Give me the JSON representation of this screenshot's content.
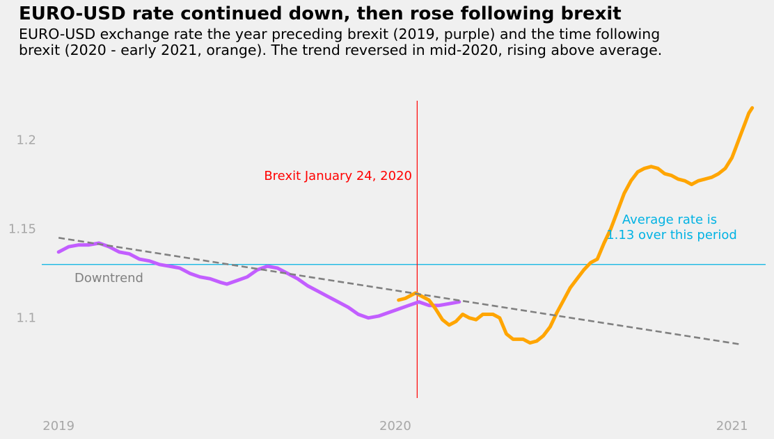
{
  "chart_data": {
    "type": "line",
    "title": "EURO-USD rate continued down, then rose following brexit",
    "subtitle": "EURO-USD exchange rate the year preceding brexit (2019, purple) and the time following brexit (2020 - early 2021, orange). The trend reversed in mid-2020, rising above average.",
    "xlabel": "",
    "ylabel": "",
    "x_ticks": [
      "2019",
      "2020",
      "2021"
    ],
    "y_ticks": [
      "1.1",
      "1.15",
      "1.2"
    ],
    "xlim": [
      -0.05,
      2.1
    ],
    "ylim": [
      1.055,
      1.222
    ],
    "grid": false,
    "series": [
      {
        "color": "#c25eff",
        "points": [
          [
            0.0,
            1.137
          ],
          [
            0.03,
            1.14
          ],
          [
            0.06,
            1.141
          ],
          [
            0.09,
            1.141
          ],
          [
            0.12,
            1.142
          ],
          [
            0.15,
            1.14
          ],
          [
            0.18,
            1.137
          ],
          [
            0.21,
            1.136
          ],
          [
            0.24,
            1.133
          ],
          [
            0.27,
            1.132
          ],
          [
            0.3,
            1.13
          ],
          [
            0.33,
            1.129
          ],
          [
            0.36,
            1.128
          ],
          [
            0.39,
            1.125
          ],
          [
            0.42,
            1.123
          ],
          [
            0.45,
            1.122
          ],
          [
            0.48,
            1.12
          ],
          [
            0.5,
            1.119
          ],
          [
            0.53,
            1.121
          ],
          [
            0.56,
            1.123
          ],
          [
            0.59,
            1.127
          ],
          [
            0.62,
            1.129
          ],
          [
            0.65,
            1.128
          ],
          [
            0.68,
            1.125
          ],
          [
            0.71,
            1.122
          ],
          [
            0.74,
            1.118
          ],
          [
            0.77,
            1.115
          ],
          [
            0.8,
            1.112
          ],
          [
            0.83,
            1.109
          ],
          [
            0.86,
            1.106
          ],
          [
            0.89,
            1.102
          ],
          [
            0.92,
            1.1
          ],
          [
            0.95,
            1.101
          ],
          [
            0.98,
            1.103
          ],
          [
            1.01,
            1.105
          ],
          [
            1.04,
            1.107
          ],
          [
            1.07,
            1.109
          ],
          [
            1.1,
            1.107
          ],
          [
            1.13,
            1.107
          ],
          [
            1.16,
            1.108
          ],
          [
            1.19,
            1.109
          ]
        ]
      },
      {
        "color": "#ffa500",
        "points": [
          [
            1.01,
            1.11
          ],
          [
            1.03,
            1.111
          ],
          [
            1.06,
            1.114
          ],
          [
            1.08,
            1.112
          ],
          [
            1.1,
            1.11
          ],
          [
            1.12,
            1.105
          ],
          [
            1.14,
            1.099
          ],
          [
            1.16,
            1.096
          ],
          [
            1.18,
            1.098
          ],
          [
            1.2,
            1.102
          ],
          [
            1.22,
            1.1
          ],
          [
            1.24,
            1.099
          ],
          [
            1.26,
            1.102
          ],
          [
            1.29,
            1.102
          ],
          [
            1.31,
            1.1
          ],
          [
            1.33,
            1.091
          ],
          [
            1.35,
            1.088
          ],
          [
            1.38,
            1.088
          ],
          [
            1.4,
            1.086
          ],
          [
            1.42,
            1.087
          ],
          [
            1.44,
            1.09
          ],
          [
            1.46,
            1.095
          ],
          [
            1.48,
            1.103
          ],
          [
            1.5,
            1.11
          ],
          [
            1.52,
            1.117
          ],
          [
            1.54,
            1.122
          ],
          [
            1.56,
            1.127
          ],
          [
            1.58,
            1.131
          ],
          [
            1.6,
            1.133
          ],
          [
            1.62,
            1.142
          ],
          [
            1.64,
            1.15
          ],
          [
            1.66,
            1.16
          ],
          [
            1.68,
            1.17
          ],
          [
            1.7,
            1.177
          ],
          [
            1.72,
            1.182
          ],
          [
            1.74,
            1.184
          ],
          [
            1.76,
            1.185
          ],
          [
            1.78,
            1.184
          ],
          [
            1.8,
            1.181
          ],
          [
            1.82,
            1.18
          ],
          [
            1.84,
            1.178
          ],
          [
            1.86,
            1.177
          ],
          [
            1.88,
            1.175
          ],
          [
            1.9,
            1.177
          ],
          [
            1.92,
            1.178
          ],
          [
            1.94,
            1.179
          ],
          [
            1.96,
            1.181
          ],
          [
            1.98,
            1.184
          ],
          [
            2.0,
            1.19
          ],
          [
            2.01,
            1.195
          ],
          [
            2.02,
            1.2
          ],
          [
            2.03,
            1.205
          ],
          [
            2.04,
            1.21
          ],
          [
            2.05,
            1.215
          ],
          [
            2.06,
            1.218
          ]
        ]
      }
    ],
    "trend_line": {
      "color": "#808080",
      "style": "dashed",
      "start": [
        0.0,
        1.145
      ],
      "end": [
        2.03,
        1.085
      ]
    },
    "average_line": {
      "value": 1.13,
      "color": "#00b2e3"
    },
    "brexit_marker": {
      "x": 1.065,
      "color": "#ff0000"
    },
    "annotations": {
      "brexit": "Brexit January 24, 2020",
      "average_line1": "Average rate is",
      "average_line2": "1.13 over this period",
      "downtrend": "Downtrend"
    }
  }
}
